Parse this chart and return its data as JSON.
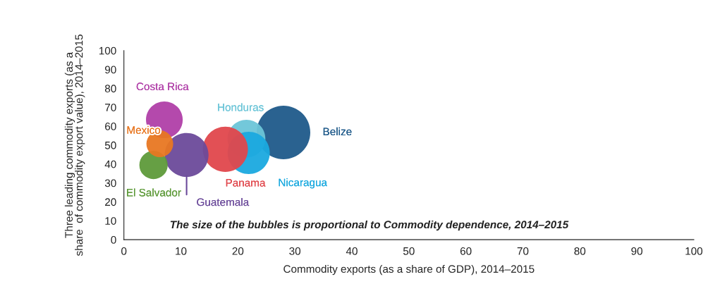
{
  "chart_data": {
    "type": "bubble",
    "xlabel": "Commodity exports (as a share of GDP), 2014–2015",
    "ylabel": "Three leading commodity exports (as a\nshare  of commodity export value), 2014–2015",
    "annotations": [
      "The size of the bubbles is proportional to Commodity dependence, 2014–2015"
    ],
    "xlim": [
      0,
      100
    ],
    "ylim": [
      0,
      100
    ],
    "xticks": [
      0,
      10,
      20,
      30,
      40,
      50,
      60,
      70,
      80,
      90,
      100
    ],
    "yticks": [
      0,
      10,
      20,
      30,
      40,
      50,
      60,
      70,
      80,
      90,
      100
    ],
    "grid": false,
    "legend": false,
    "series": [
      {
        "name": "Belize",
        "color": "#1f5a8a",
        "x": [
          28.0
        ],
        "values": [
          56.7
        ],
        "sizes": [
          1
        ]
      },
      {
        "name": "Honduras",
        "color": "#6cc5d8",
        "x": [
          21.5
        ],
        "values": [
          53.4
        ],
        "sizes": [
          0.5
        ]
      },
      {
        "name": "Nicaragua",
        "color": "#1aa9df",
        "x": [
          21.9
        ],
        "values": [
          45.9
        ],
        "sizes": [
          0.62
        ]
      },
      {
        "name": "Panama",
        "color": "#e0474c",
        "x": [
          17.8
        ],
        "values": [
          47.8
        ],
        "sizes": [
          0.71
        ]
      },
      {
        "name": "Costa Rica",
        "color": "#b03fa8",
        "x": [
          7.1
        ],
        "values": [
          63.4
        ],
        "sizes": [
          0.47
        ]
      },
      {
        "name": "Guatemala",
        "color": "#6b4a9a",
        "x": [
          11.0
        ],
        "values": [
          44.8
        ],
        "sizes": [
          0.67
        ]
      },
      {
        "name": "El Salvador",
        "color": "#5e9a3a",
        "x": [
          5.2
        ],
        "values": [
          39.5
        ],
        "sizes": [
          0.28
        ]
      },
      {
        "name": "Mexico",
        "color": "#e87722",
        "x": [
          6.3
        ],
        "values": [
          50.7
        ],
        "sizes": [
          0.25
        ]
      }
    ]
  }
}
